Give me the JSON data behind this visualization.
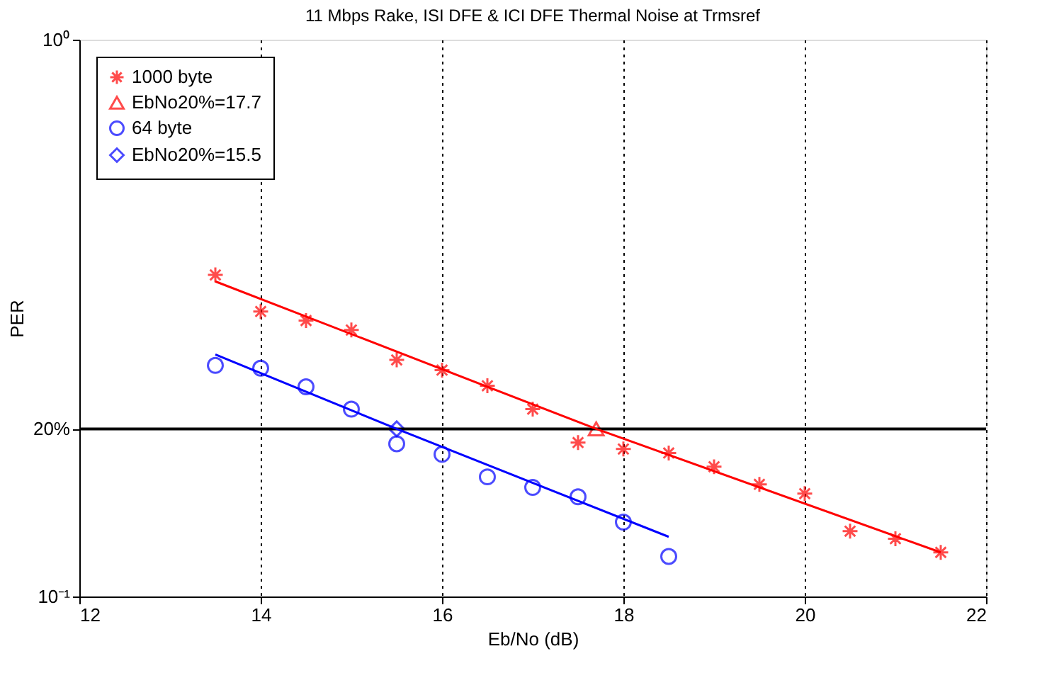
{
  "chart_data": {
    "type": "scatter",
    "title": "11 Mbps Rake, ISI DFE & ICI DFE Thermal Noise at Trmsref",
    "xlabel": "Eb/No (dB)",
    "ylabel": "PER",
    "xlim": [
      12,
      22
    ],
    "xticks": [
      12,
      14,
      16,
      18,
      20,
      22
    ],
    "ylim": [
      0.1,
      1
    ],
    "yticks": [
      {
        "value": 0.1,
        "label": "10⁻¹"
      },
      {
        "value": 0.2,
        "label": "20%"
      },
      {
        "value": 1,
        "label": "10⁰"
      }
    ],
    "log": "y",
    "grid": "x",
    "legend": "top left",
    "ref_lines": [
      {
        "axis": "y",
        "value": 0.2,
        "label": null,
        "color": "#000000",
        "line_style": "solid"
      }
    ],
    "series": [
      {
        "name": "1000 byte",
        "color": "#ff0000",
        "marker": "cross",
        "x": [
          13.5,
          14,
          14.5,
          15,
          15.5,
          16,
          16.5,
          17,
          17.5,
          18,
          18.5,
          19,
          19.5,
          20,
          20.5,
          21,
          21.5
        ],
        "values": [
          0.378,
          0.325,
          0.313,
          0.301,
          0.266,
          0.255,
          0.239,
          0.217,
          0.189,
          0.184,
          0.181,
          0.171,
          0.159,
          0.153,
          0.131,
          0.127,
          0.12
        ]
      },
      {
        "name": "EbNo20%=17.7",
        "color": "#ff0000",
        "marker": "triangle",
        "x": [
          17.7
        ],
        "values": [
          0.2
        ]
      },
      {
        "name": "64 byte",
        "color": "#0000ff",
        "marker": "circle",
        "x": [
          13.5,
          14,
          14.5,
          15,
          15.5,
          16,
          16.5,
          17,
          17.5,
          18,
          18.5
        ],
        "values": [
          0.26,
          0.257,
          0.238,
          0.217,
          0.188,
          0.18,
          0.164,
          0.157,
          0.151,
          0.136,
          0.118
        ]
      },
      {
        "name": "EbNo20%=15.5",
        "color": "#0000ff",
        "marker": "diamond",
        "x": [
          15.5
        ],
        "values": [
          0.2
        ]
      },
      {
        "type": "line",
        "color": "#ff0000",
        "marker": "none",
        "line_style": "solid",
        "x": [
          13.5,
          17.7,
          21.5
        ],
        "values": [
          0.368,
          0.2,
          0.12
        ]
      },
      {
        "type": "line",
        "color": "#0000ff",
        "marker": "none",
        "line_style": "solid",
        "x": [
          13.5,
          15.5,
          18.5
        ],
        "values": [
          0.272,
          0.2,
          0.128
        ]
      }
    ]
  }
}
